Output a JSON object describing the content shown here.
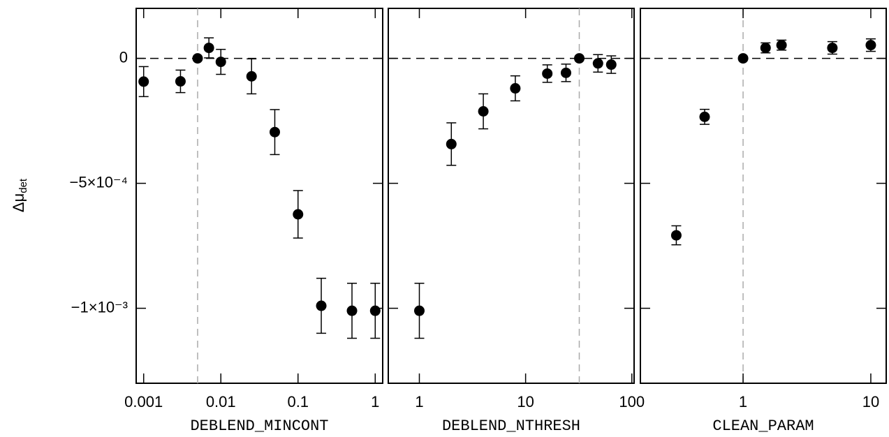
{
  "chart_data": [
    {
      "type": "scatter",
      "xlabel": "DEBLEND_MINCONT",
      "ylabel": "Δμ",
      "ylabel_sub": "det",
      "xscale": "log",
      "xlim": [
        0.0008,
        1.25
      ],
      "xticks": [
        0.001,
        0.01,
        0.1,
        1
      ],
      "ylim": [
        -0.0013,
        0.0002
      ],
      "yticks": [
        {
          "value": 0,
          "label": "0"
        },
        {
          "value": -0.0005,
          "label": "−5×10⁻⁴"
        },
        {
          "value": -0.001,
          "label": "−1×10⁻³"
        }
      ],
      "reference_x": 0.005,
      "reference_y": 0,
      "x": [
        0.001,
        0.003,
        0.005,
        0.007,
        0.01,
        0.025,
        0.05,
        0.1,
        0.2,
        0.5,
        1
      ],
      "series": [
        {
          "color": "#000000",
          "values": [
            -9.3e-05,
            -9.2e-05,
            0,
            4.2e-05,
            -1.4e-05,
            -7.2e-05,
            -0.000295,
            -0.000624,
            -0.00099,
            -0.00101,
            -0.00101
          ],
          "errors": [
            6e-05,
            4.5e-05,
            0,
            4e-05,
            5e-05,
            7e-05,
            9e-05,
            9.5e-05,
            0.00011,
            0.00011,
            0.00011
          ]
        }
      ]
    },
    {
      "type": "scatter",
      "xlabel": "DEBLEND_NTHRESH",
      "xscale": "log",
      "xlim": [
        0.51,
        105
      ],
      "xticks": [
        1,
        10,
        100
      ],
      "ylim": [
        -0.0013,
        0.0002
      ],
      "reference_x": 32,
      "reference_y": 0,
      "x": [
        1,
        2,
        4,
        8,
        16,
        24,
        32,
        48,
        64
      ],
      "series": [
        {
          "color": "#000000",
          "values": [
            -0.00101,
            -0.000343,
            -0.000212,
            -0.00012,
            -6.1e-05,
            -5.8e-05,
            0,
            -2e-05,
            -2.5e-05
          ],
          "errors": [
            0.00011,
            8.5e-05,
            7e-05,
            5e-05,
            3.5e-05,
            3.5e-05,
            0,
            3.5e-05,
            3.5e-05
          ]
        }
      ]
    },
    {
      "type": "scatter",
      "xlabel": "CLEAN_PARAM",
      "xscale": "log",
      "xlim": [
        0.157,
        13.2
      ],
      "xticks": [
        1,
        10
      ],
      "ylim": [
        -0.0013,
        0.0002
      ],
      "reference_x": 1,
      "reference_y": 0,
      "x": [
        0.3,
        0.5,
        1,
        1.5,
        2,
        5,
        10
      ],
      "series": [
        {
          "color": "#000000",
          "values": [
            -0.000708,
            -0.000234,
            0,
            4.2e-05,
            5.3e-05,
            4.2e-05,
            5.3e-05
          ],
          "errors": [
            3.8e-05,
            3e-05,
            0,
            2e-05,
            2e-05,
            2.5e-05,
            2.5e-05
          ]
        }
      ]
    }
  ]
}
